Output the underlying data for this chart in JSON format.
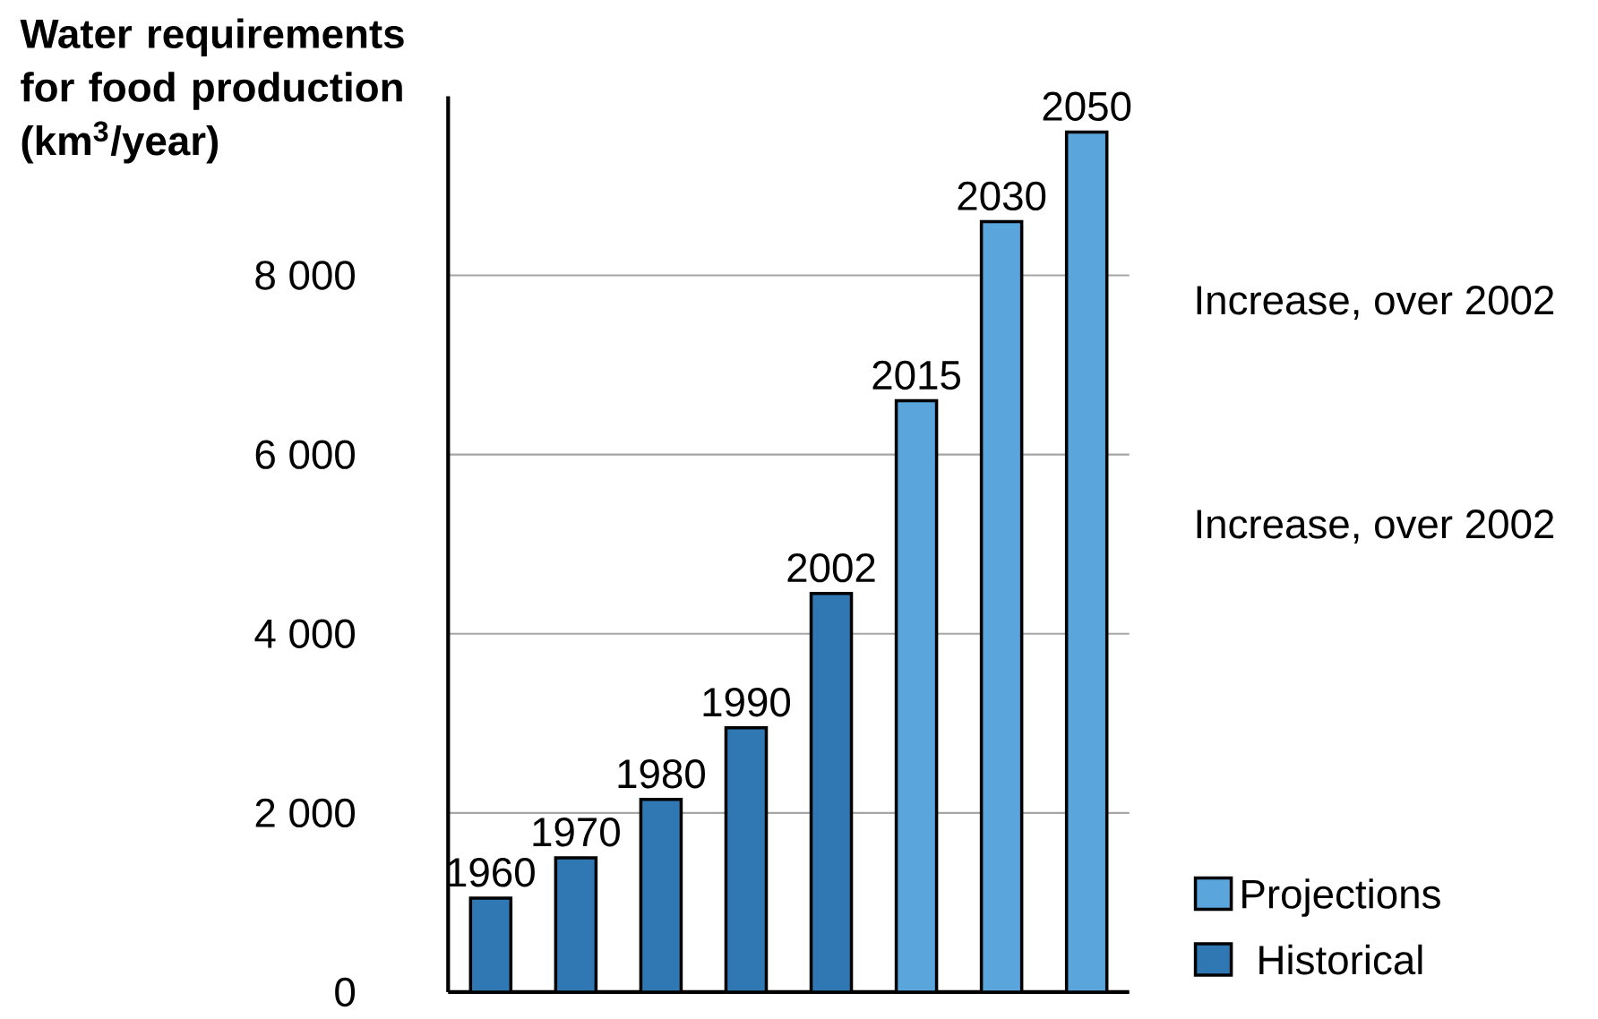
{
  "chart_data": {
    "type": "bar",
    "ylabel": "Water requirements for food production (km$^{3}$/year)",
    "categories": [
      "1960",
      "1970",
      "1980",
      "1990",
      "2002",
      "2015",
      "2030",
      "2050"
    ],
    "series": [
      {
        "name": "Projections",
        "color": "#5aa5dc",
        "values": [
          null,
          null,
          null,
          null,
          null,
          6600,
          8600,
          9600
        ]
      },
      {
        "name": "Historical",
        "color": "#2f78b3",
        "values": [
          1050,
          1500,
          2150,
          2950,
          4450,
          null,
          null,
          null
        ]
      }
    ],
    "ylim": [
      0,
      10000
    ],
    "yticks": [
      0,
      {
        "value": 2000,
        "label": "2 000"
      },
      {
        "value": 4000,
        "label": "4 000"
      },
      {
        "value": 6000,
        "label": "6 000"
      },
      {
        "value": 8000,
        "label": "8 000"
      }
    ],
    "grid": "y",
    "legend": "bottom right",
    "annotations": [
      "Increase, over 2002",
      "Increase, over 2002"
    ]
  }
}
